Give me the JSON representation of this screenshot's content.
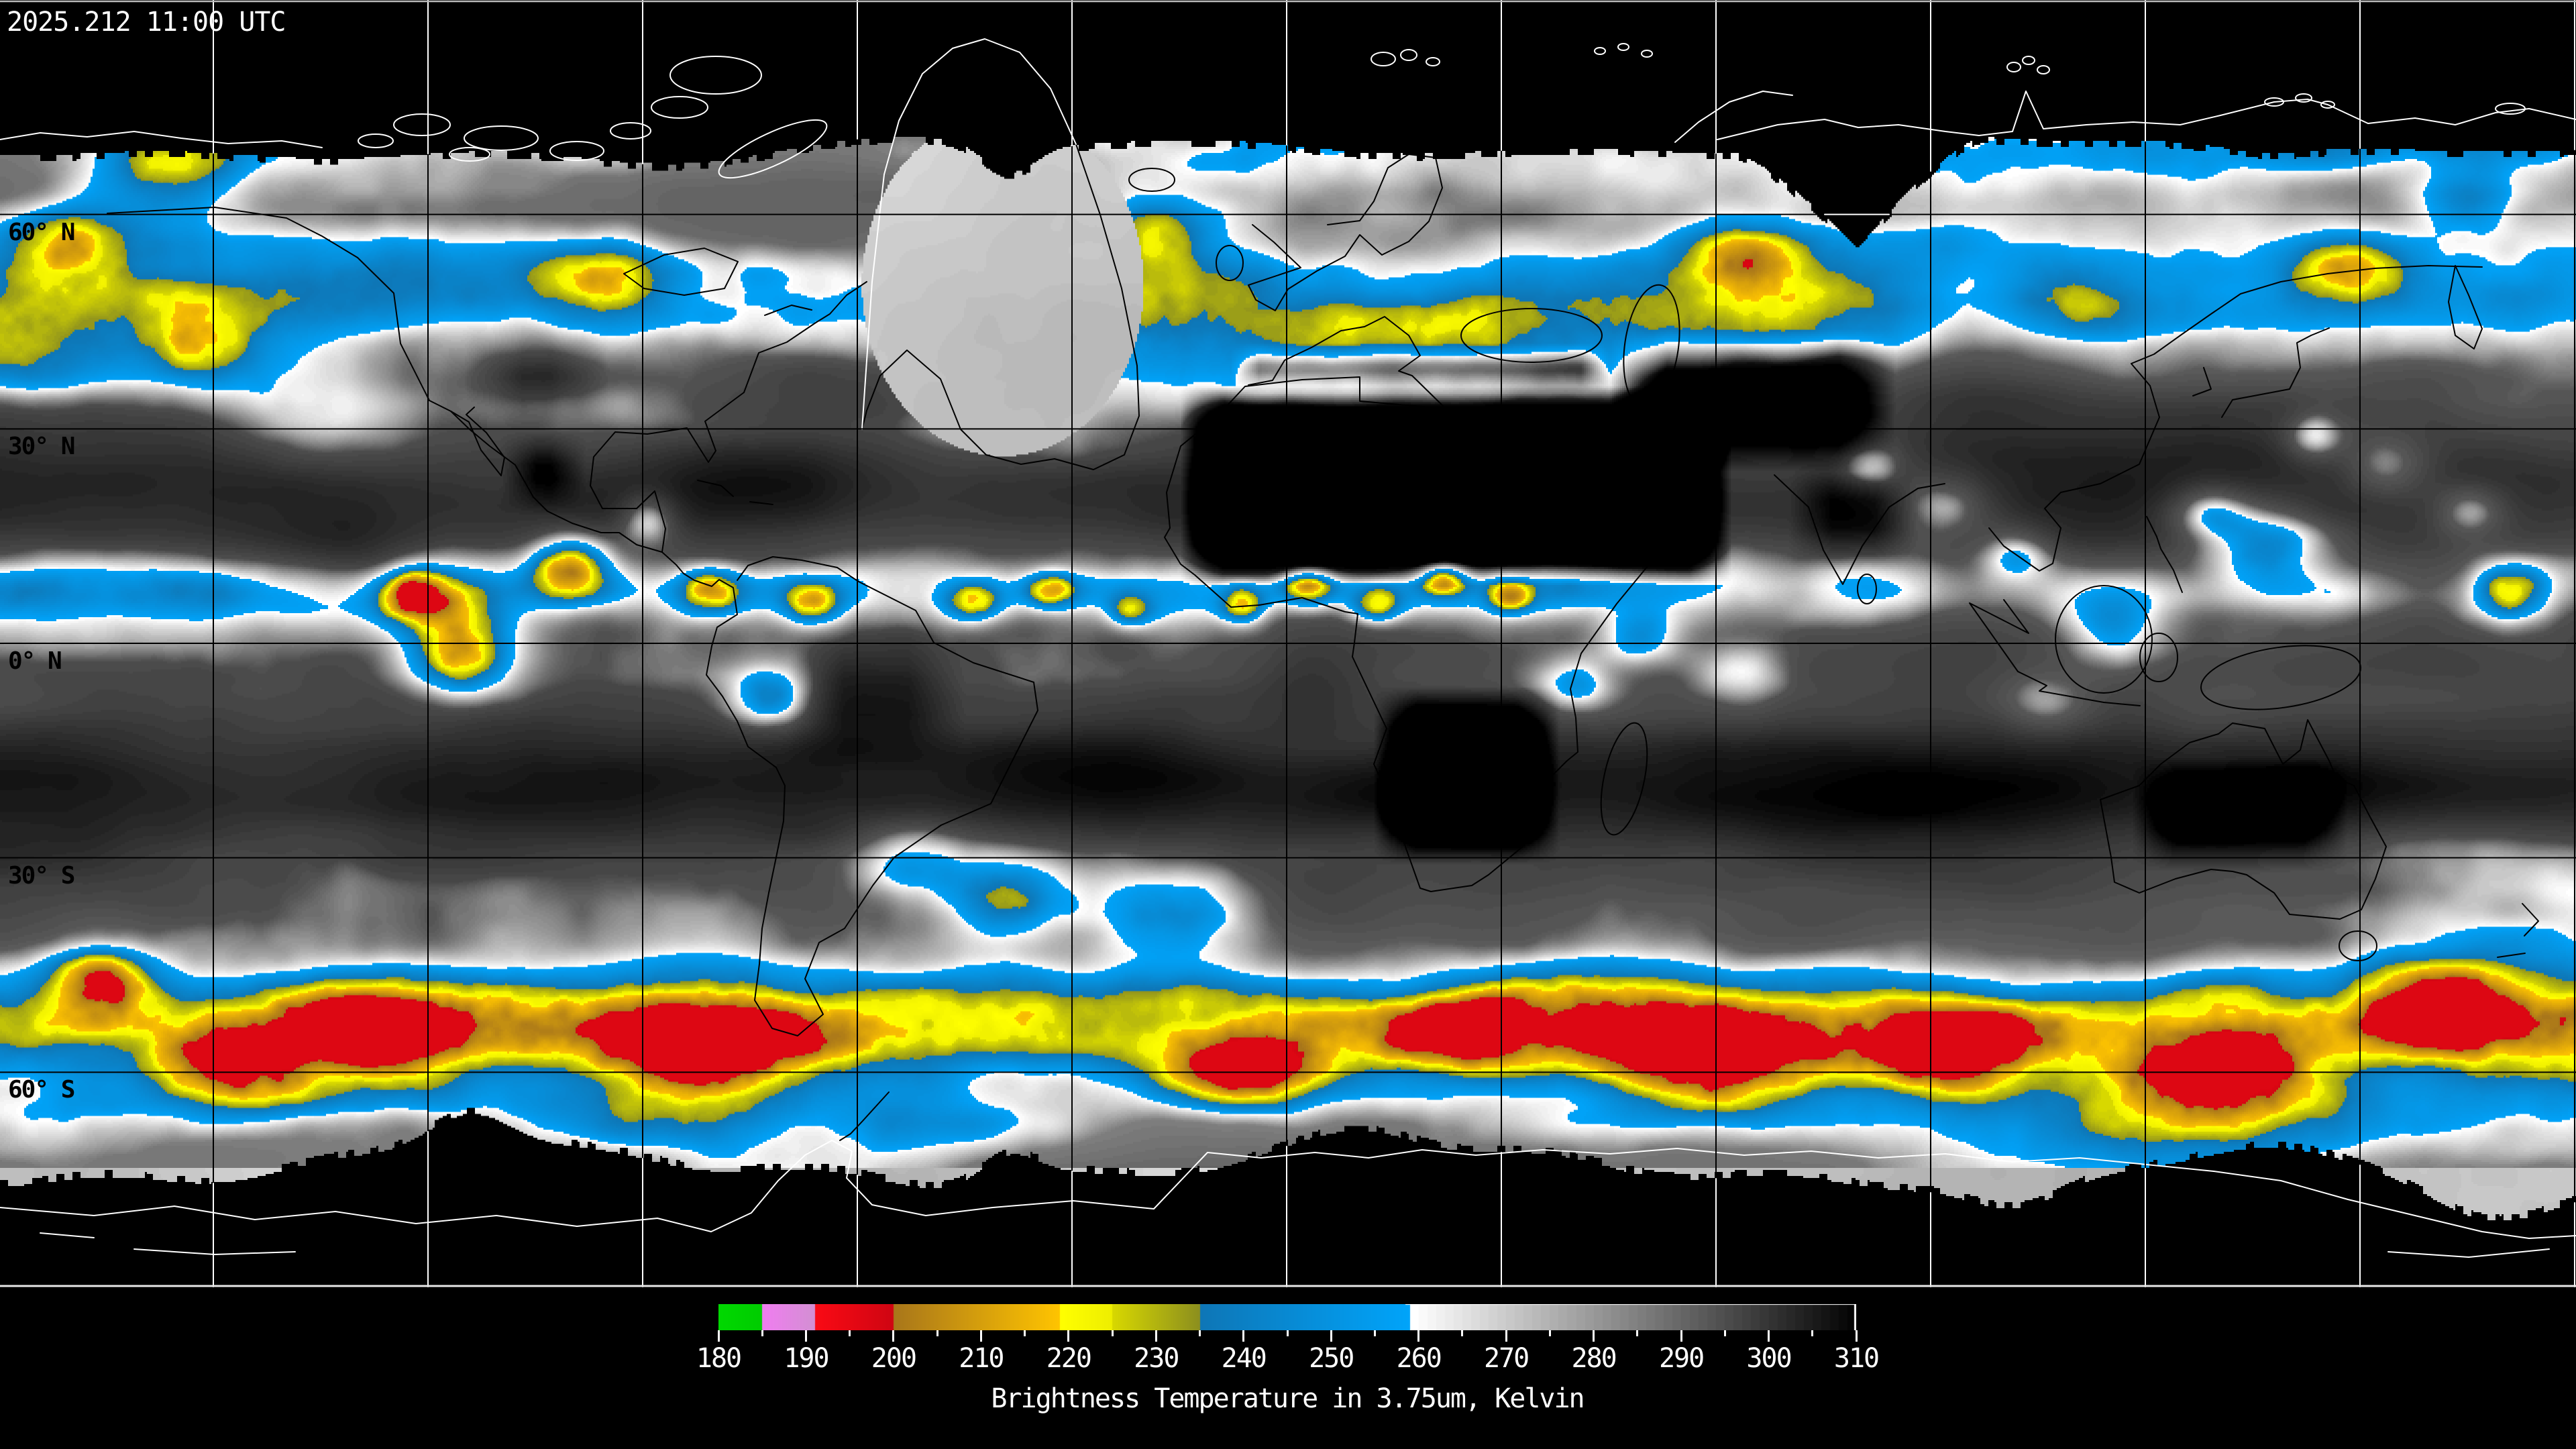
{
  "header": {
    "timestamp": "2025.212 11:00 UTC"
  },
  "chart_data": {
    "type": "heatmap",
    "title": "Brightness Temperature in 3.75um, Kelvin",
    "variable": "Brightness Temperature",
    "wavelength": "3.75um",
    "units": "Kelvin",
    "timestamp": "2025.212 11:00 UTC",
    "colorbar": {
      "min": 180,
      "max": 310,
      "minor_tick_step": 5,
      "major_tick_step": 10,
      "tick_labels": [
        "180",
        "190",
        "200",
        "210",
        "220",
        "230",
        "240",
        "250",
        "260",
        "270",
        "280",
        "290",
        "300",
        "310"
      ],
      "caption": "Brightness Temperature in 3.75um, Kelvin",
      "segments": [
        {
          "name": "green",
          "from": 180,
          "to": 185,
          "color_start": "#00d800",
          "color_end": "#00cc00"
        },
        {
          "name": "violet",
          "from": 185,
          "to": 191,
          "color_start": "#f07df0",
          "color_end": "#d38fd3"
        },
        {
          "name": "red",
          "from": 191,
          "to": 200,
          "color_start": "#fa0a14",
          "color_end": "#cf0512"
        },
        {
          "name": "orange",
          "from": 200,
          "to": 219,
          "color_start": "#a8761a",
          "color_end": "#ffc400"
        },
        {
          "name": "yellow",
          "from": 219,
          "to": 225,
          "color_start": "#ffff00",
          "color_end": "#eeee00"
        },
        {
          "name": "olive",
          "from": 225,
          "to": 235,
          "color_start": "#d8d800",
          "color_end": "#8c8f1e"
        },
        {
          "name": "blue",
          "from": 235,
          "to": 259,
          "color_start": "#0e76b6",
          "color_end": "#00a4fa"
        },
        {
          "name": "grayscale",
          "from": 259,
          "to": 310,
          "color_start": "#ffffff",
          "color_end": "#000000"
        }
      ]
    },
    "map": {
      "projection": "equirectangular",
      "lat_gridlines_deg": [
        60,
        30,
        0,
        -30,
        -60
      ],
      "lon_gridline_spacing_deg": 30,
      "lat_labels": [
        "60° N",
        "30° N",
        "0° N",
        "30° S",
        "60° S"
      ]
    }
  },
  "colors": {
    "background": "#000000",
    "grid_on_imagery": "#000000",
    "grid_on_nodata": "#ffffff",
    "coast_on_imagery": "#000000",
    "coast_on_nodata": "#ffffff",
    "label_text": "#ffffff",
    "lat_label_text": "#000000"
  }
}
